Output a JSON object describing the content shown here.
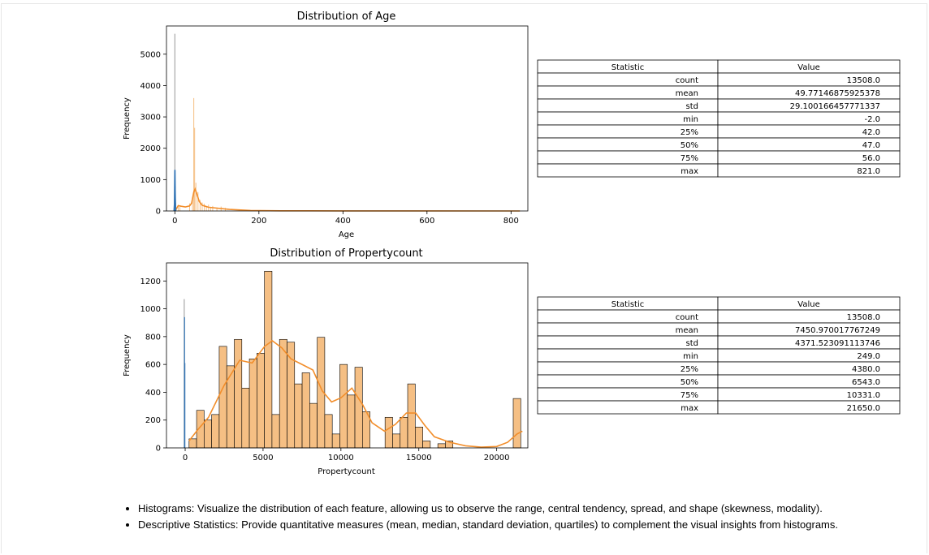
{
  "notes": [
    "Histograms: Visualize the distribution of each feature, allowing us to observe the range, central tendency, spread, and shape (skewness, modality).",
    "Descriptive Statistics: Provide quantitative measures (mean, median, standard deviation, quartiles) to complement the visual insights from histograms."
  ],
  "tables": [
    {
      "header": [
        "Statistic",
        "Value"
      ],
      "rows": [
        [
          "count",
          "13508.0"
        ],
        [
          "mean",
          "49.77146875925378"
        ],
        [
          "std",
          "29.100166457771337"
        ],
        [
          "min",
          "-2.0"
        ],
        [
          "25%",
          "42.0"
        ],
        [
          "50%",
          "47.0"
        ],
        [
          "75%",
          "56.0"
        ],
        [
          "max",
          "821.0"
        ]
      ]
    },
    {
      "header": [
        "Statistic",
        "Value"
      ],
      "rows": [
        [
          "count",
          "13508.0"
        ],
        [
          "mean",
          "7450.970017767249"
        ],
        [
          "std",
          "4371.523091113746"
        ],
        [
          "min",
          "249.0"
        ],
        [
          "25%",
          "4380.0"
        ],
        [
          "50%",
          "6543.0"
        ],
        [
          "75%",
          "10331.0"
        ],
        [
          "max",
          "21650.0"
        ]
      ]
    }
  ],
  "chart_data": [
    {
      "type": "bar",
      "title": "Distribution of Age",
      "xlabel": "Age",
      "ylabel": "Frequency",
      "xlim": [
        -20,
        840
      ],
      "ylim": [
        0,
        5900
      ],
      "xticks": [
        0,
        200,
        400,
        600,
        800
      ],
      "yticks": [
        0,
        1000,
        2000,
        3000,
        4000,
        5000
      ],
      "grid": false,
      "colors": {
        "blue": "#3274b5",
        "orange": "#f28e2b",
        "orange_fill": "#f5bf84",
        "grey_spike": "#a7a7a7"
      },
      "spikes_blue": [
        {
          "x": 0,
          "y": 5650
        },
        {
          "x": 0.5,
          "y": 1310
        },
        {
          "x": 1,
          "y": 780
        }
      ],
      "spikes_orange": [
        {
          "x": 2,
          "y": 260
        },
        {
          "x": 8,
          "y": 190
        },
        {
          "x": 12,
          "y": 170
        },
        {
          "x": 35,
          "y": 240
        },
        {
          "x": 42,
          "y": 380
        },
        {
          "x": 45,
          "y": 3600
        },
        {
          "x": 47,
          "y": 2650
        },
        {
          "x": 50,
          "y": 900
        },
        {
          "x": 55,
          "y": 600
        },
        {
          "x": 60,
          "y": 350
        },
        {
          "x": 65,
          "y": 270
        },
        {
          "x": 70,
          "y": 230
        },
        {
          "x": 75,
          "y": 150
        },
        {
          "x": 80,
          "y": 200
        },
        {
          "x": 85,
          "y": 130
        },
        {
          "x": 90,
          "y": 160
        },
        {
          "x": 100,
          "y": 110
        },
        {
          "x": 110,
          "y": 140
        },
        {
          "x": 120,
          "y": 100
        }
      ],
      "kde_blue": [
        [
          -2,
          0
        ],
        [
          -1,
          200
        ],
        [
          0,
          1310
        ],
        [
          1,
          400
        ],
        [
          2,
          0
        ]
      ],
      "kde_orange": [
        [
          2,
          30
        ],
        [
          8,
          170
        ],
        [
          15,
          150
        ],
        [
          25,
          130
        ],
        [
          35,
          160
        ],
        [
          40,
          250
        ],
        [
          45,
          600
        ],
        [
          48,
          700
        ],
        [
          52,
          550
        ],
        [
          58,
          300
        ],
        [
          65,
          180
        ],
        [
          80,
          120
        ],
        [
          100,
          90
        ],
        [
          130,
          50
        ],
        [
          180,
          15
        ],
        [
          250,
          5
        ],
        [
          400,
          2
        ],
        [
          821,
          0
        ]
      ]
    },
    {
      "type": "bar",
      "title": "Distribution of Propertycount",
      "xlabel": "Propertycount",
      "ylabel": "Frequency",
      "xlim": [
        -1200,
        22000
      ],
      "ylim": [
        0,
        1330
      ],
      "xticks": [
        0,
        5000,
        10000,
        15000,
        20000
      ],
      "yticks": [
        0,
        200,
        400,
        600,
        800,
        1000,
        1200
      ],
      "grid": false,
      "colors": {
        "blue": "#3274b5",
        "orange": "#f28e2b",
        "orange_fill": "#f5bf84",
        "grey_spike": "#a7a7a7"
      },
      "bin_edges": [
        249,
        733,
        1217,
        1701,
        2185,
        2669,
        3153,
        3637,
        4121,
        4605,
        5089,
        5573,
        6057,
        6541,
        7025,
        7509,
        7993,
        8477,
        8961,
        9445,
        9929,
        10413,
        10897,
        11381,
        11865,
        12349,
        12833,
        13317,
        13801,
        14285,
        14769,
        15253,
        15737,
        16221,
        16705,
        17189,
        17673,
        18157,
        18641,
        19125,
        19609,
        20093,
        20577,
        21061,
        21545
      ],
      "bin_values": [
        65,
        270,
        200,
        240,
        730,
        590,
        780,
        430,
        640,
        680,
        1270,
        240,
        780,
        760,
        460,
        540,
        320,
        795,
        240,
        100,
        600,
        380,
        580,
        260,
        0,
        0,
        220,
        100,
        220,
        460,
        150,
        50,
        0,
        30,
        50,
        0,
        0,
        0,
        0,
        0,
        0,
        0,
        0,
        355
      ],
      "spikes_blue": [
        {
          "x": -60,
          "y": 1070
        },
        {
          "x": -40,
          "y": 940
        },
        {
          "x": -20,
          "y": 610
        }
      ],
      "kde_orange": [
        [
          249,
          50
        ],
        [
          800,
          130
        ],
        [
          1500,
          220
        ],
        [
          2500,
          450
        ],
        [
          3500,
          630
        ],
        [
          4300,
          610
        ],
        [
          5100,
          730
        ],
        [
          5600,
          770
        ],
        [
          6200,
          720
        ],
        [
          6800,
          640
        ],
        [
          7500,
          600
        ],
        [
          8200,
          560
        ],
        [
          8800,
          410
        ],
        [
          9400,
          330
        ],
        [
          10000,
          360
        ],
        [
          10700,
          430
        ],
        [
          11400,
          310
        ],
        [
          12000,
          180
        ],
        [
          12800,
          120
        ],
        [
          13500,
          170
        ],
        [
          14200,
          250
        ],
        [
          14800,
          250
        ],
        [
          15400,
          160
        ],
        [
          16000,
          80
        ],
        [
          17000,
          40
        ],
        [
          18000,
          15
        ],
        [
          19000,
          5
        ],
        [
          20000,
          10
        ],
        [
          20700,
          40
        ],
        [
          21300,
          100
        ],
        [
          21650,
          120
        ]
      ]
    }
  ]
}
